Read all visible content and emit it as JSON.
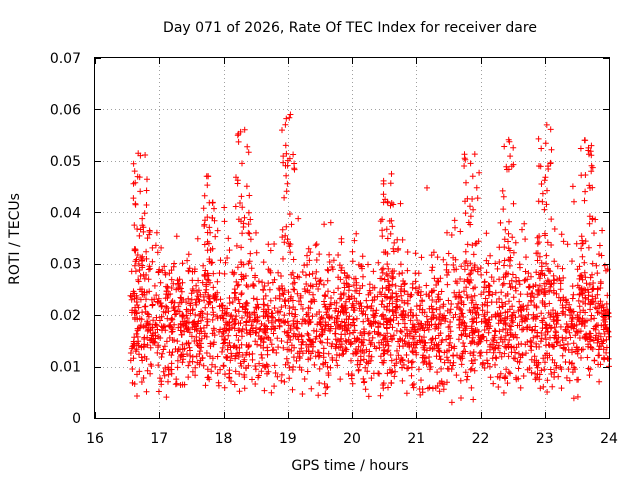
{
  "chart_data": {
    "type": "scatter",
    "title": "Day 071 of 2026, Rate Of TEC Index for receiver dare",
    "xlabel": "GPS time / hours",
    "ylabel": "ROTI / TECUs",
    "xlim": [
      16,
      24
    ],
    "ylim": [
      0,
      0.07
    ],
    "xticks": [
      16,
      17,
      18,
      19,
      20,
      21,
      22,
      23,
      24
    ],
    "xtick_labels": [
      "16",
      "17",
      "18",
      "19",
      "20",
      "21",
      "22",
      "23",
      "24"
    ],
    "yticks": [
      0,
      0.01,
      0.02,
      0.03,
      0.04,
      0.05,
      0.06,
      0.07
    ],
    "ytick_labels": [
      "0",
      "0.01",
      "0.02",
      "0.03",
      "0.04",
      "0.05",
      "0.06",
      "0.07"
    ],
    "grid": true,
    "marker": "+",
    "color": "#ff0000",
    "series": [
      {
        "name": "ROTI",
        "x_start": 16.55,
        "x_end": 24.0,
        "points_approx": 6000,
        "baseline_median": 0.017,
        "typical_range": [
          0.005,
          0.035
        ],
        "peaks": [
          {
            "x": 16.7,
            "y": 0.053
          },
          {
            "x": 17.8,
            "y": 0.047
          },
          {
            "x": 18.3,
            "y": 0.059
          },
          {
            "x": 19.0,
            "y": 0.06
          },
          {
            "x": 20.55,
            "y": 0.05
          },
          {
            "x": 21.85,
            "y": 0.053
          },
          {
            "x": 22.45,
            "y": 0.056
          },
          {
            "x": 23.0,
            "y": 0.057
          },
          {
            "x": 23.65,
            "y": 0.054
          }
        ]
      }
    ]
  }
}
